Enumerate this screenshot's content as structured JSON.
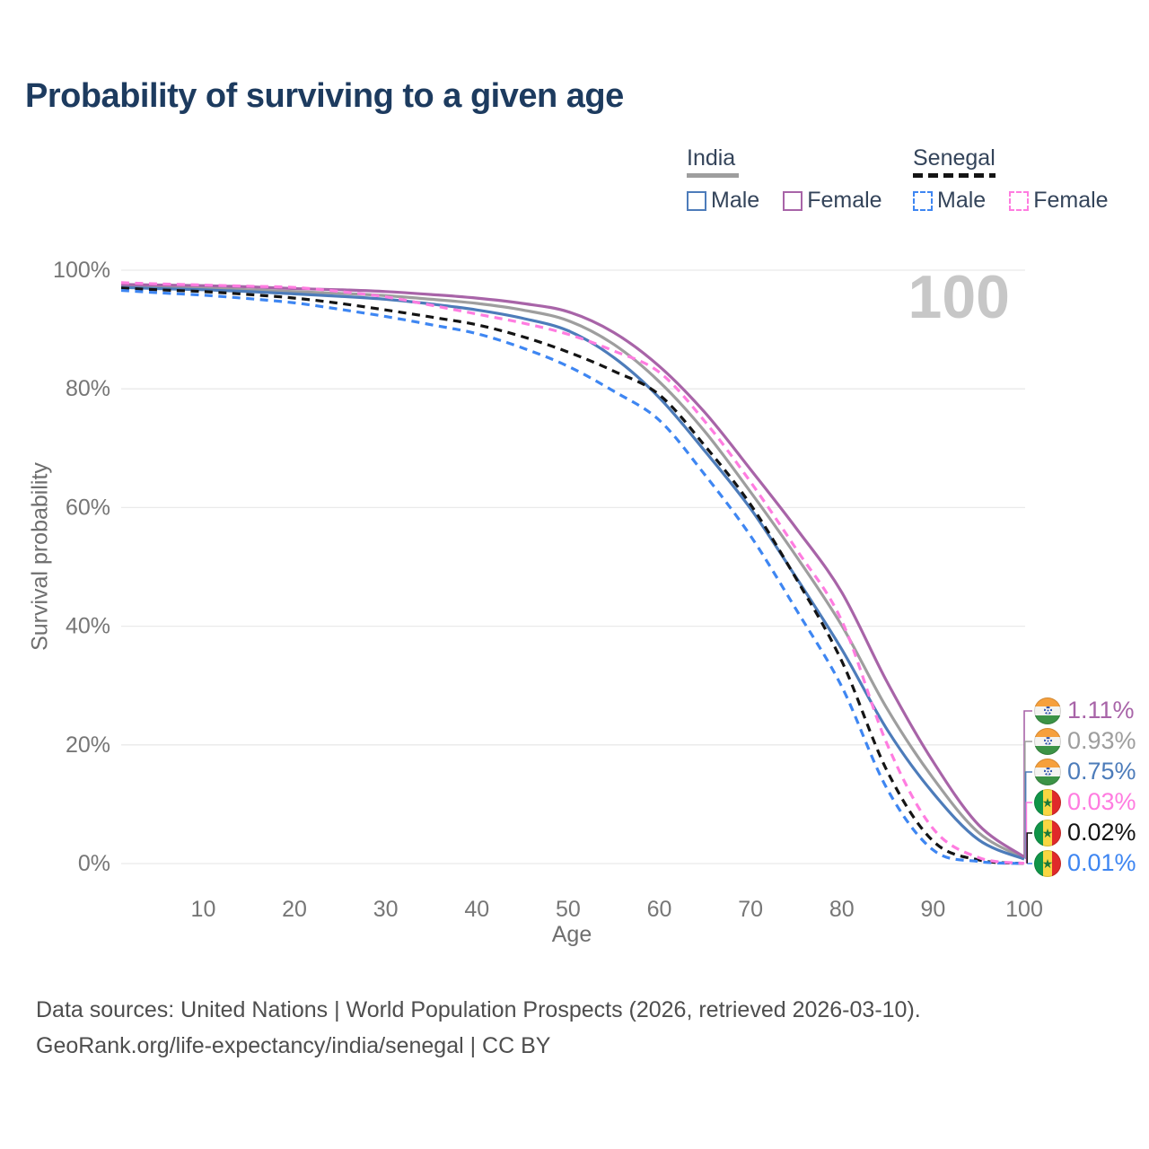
{
  "title": "Probability of surviving to a given age",
  "watermark": "100",
  "legend": {
    "groups": [
      {
        "label": "India",
        "style": "solid",
        "items": [
          {
            "label": "Male",
            "series": "india_male"
          },
          {
            "label": "Female",
            "series": "india_female"
          }
        ]
      },
      {
        "label": "Senegal",
        "style": "dashed",
        "items": [
          {
            "label": "Male",
            "series": "senegal_male"
          },
          {
            "label": "Female",
            "series": "senegal_female"
          }
        ]
      }
    ]
  },
  "chart_data": {
    "type": "line",
    "title": "Probability of surviving to a given age",
    "xlabel": "Age",
    "ylabel": "Survival probability",
    "xlim": [
      1,
      100
    ],
    "ylim": [
      0,
      100
    ],
    "grid": "horizontal",
    "x_ticks": [
      10,
      20,
      30,
      40,
      50,
      60,
      70,
      80,
      90,
      100
    ],
    "y_ticks": [
      0,
      20,
      40,
      60,
      80,
      100
    ],
    "y_tick_suffix": "%",
    "ages": [
      1,
      5,
      10,
      15,
      20,
      25,
      30,
      35,
      40,
      45,
      50,
      55,
      60,
      65,
      70,
      75,
      80,
      85,
      90,
      95,
      100
    ],
    "series": [
      {
        "key": "india_total",
        "name": "India (both sexes)",
        "color": "#9e9e9e",
        "dashed": false,
        "values": [
          97.3,
          97.2,
          97.0,
          96.7,
          96.4,
          96.1,
          95.7,
          95.1,
          94.4,
          93.3,
          91.5,
          87.5,
          81.2,
          72.8,
          62.6,
          51.8,
          40.1,
          26.0,
          14.4,
          5.2,
          0.93
        ]
      },
      {
        "key": "india_male",
        "name": "India Male",
        "color": "#4d7cba",
        "dashed": false,
        "values": [
          97.1,
          96.9,
          96.7,
          96.4,
          96.0,
          95.6,
          95.1,
          94.3,
          93.3,
          91.9,
          89.8,
          85.3,
          78.5,
          69.5,
          59.8,
          48.2,
          36.1,
          22.5,
          11.9,
          4.0,
          0.75
        ]
      },
      {
        "key": "india_female",
        "name": "India Female",
        "color": "#a864a8",
        "dashed": false,
        "values": [
          97.6,
          97.5,
          97.4,
          97.2,
          96.9,
          96.7,
          96.4,
          95.9,
          95.3,
          94.4,
          93.0,
          89.5,
          83.8,
          76.0,
          66.4,
          56.5,
          45.7,
          30.5,
          17.2,
          6.5,
          1.11
        ]
      },
      {
        "key": "senegal_total",
        "name": "Senegal (both sexes)",
        "color": "#141414",
        "dashed": true,
        "values": [
          97.0,
          96.7,
          96.4,
          95.9,
          95.3,
          94.4,
          93.3,
          92.1,
          90.8,
          88.8,
          86.2,
          83.0,
          79.0,
          70.4,
          60.5,
          48.0,
          34.1,
          15.5,
          3.8,
          0.6,
          0.02
        ]
      },
      {
        "key": "senegal_male",
        "name": "Senegal Male",
        "color": "#3e86f2",
        "dashed": true,
        "values": [
          96.6,
          96.2,
          95.8,
          95.2,
          94.5,
          93.4,
          92.2,
          90.8,
          89.3,
          86.9,
          83.8,
          79.6,
          74.7,
          65.5,
          55.2,
          42.8,
          29.8,
          12.5,
          2.3,
          0.35,
          0.01
        ]
      },
      {
        "key": "senegal_female",
        "name": "Senegal Female",
        "color": "#ff7ce0",
        "dashed": true,
        "values": [
          97.9,
          97.7,
          97.5,
          97.3,
          97.1,
          96.4,
          95.5,
          94.1,
          92.6,
          91.1,
          89.2,
          86.4,
          82.8,
          74.5,
          64.3,
          53.0,
          40.9,
          20.0,
          5.9,
          1.0,
          0.03
        ]
      }
    ],
    "end_labels": [
      {
        "series": "india_female",
        "label": "1.11%",
        "flag": "india"
      },
      {
        "series": "india_total",
        "label": "0.93%",
        "flag": "india"
      },
      {
        "series": "india_male",
        "label": "0.75%",
        "flag": "india"
      },
      {
        "series": "senegal_female",
        "label": "0.03%",
        "flag": "senegal"
      },
      {
        "series": "senegal_total",
        "label": "0.02%",
        "flag": "senegal"
      },
      {
        "series": "senegal_male",
        "label": "0.01%",
        "flag": "senegal"
      }
    ]
  },
  "footer": {
    "line1": "Data sources: United Nations | World Population Prospects (2026, retrieved 2026-03-10).",
    "line2": "GeoRank.org/life-expectancy/india/senegal | CC BY"
  }
}
